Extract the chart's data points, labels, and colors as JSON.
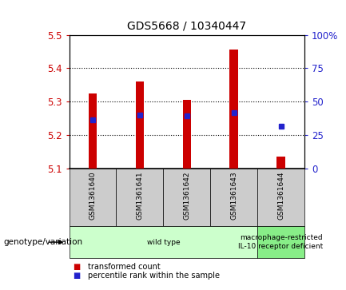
{
  "title": "GDS5668 / 10340447",
  "samples": [
    "GSM1361640",
    "GSM1361641",
    "GSM1361642",
    "GSM1361643",
    "GSM1361644"
  ],
  "bar_bottoms": [
    5.1,
    5.1,
    5.1,
    5.1,
    5.1
  ],
  "bar_tops": [
    5.325,
    5.36,
    5.305,
    5.455,
    5.135
  ],
  "percentile_values": [
    5.245,
    5.26,
    5.258,
    5.266,
    5.225
  ],
  "ylim": [
    5.1,
    5.5
  ],
  "yticks_left": [
    5.1,
    5.2,
    5.3,
    5.4,
    5.5
  ],
  "yticks_right_labels": [
    "0",
    "25",
    "50",
    "75",
    "100%"
  ],
  "bar_color": "#cc0000",
  "percentile_color": "#2222cc",
  "genotype_groups": [
    {
      "label": "wild type",
      "samples": [
        0,
        1,
        2,
        3
      ],
      "color": "#ccffcc"
    },
    {
      "label": "macrophage-restricted\nIL-10 receptor deficient",
      "samples": [
        4
      ],
      "color": "#88ee88"
    }
  ],
  "legend_items": [
    {
      "label": "transformed count",
      "color": "#cc0000"
    },
    {
      "label": "percentile rank within the sample",
      "color": "#2222cc"
    }
  ],
  "left_tick_color": "#cc0000",
  "right_tick_color": "#2222cc",
  "genotype_label": "genotype/variation",
  "background_color": "#ffffff",
  "sample_box_color": "#cccccc",
  "bar_width": 0.18
}
